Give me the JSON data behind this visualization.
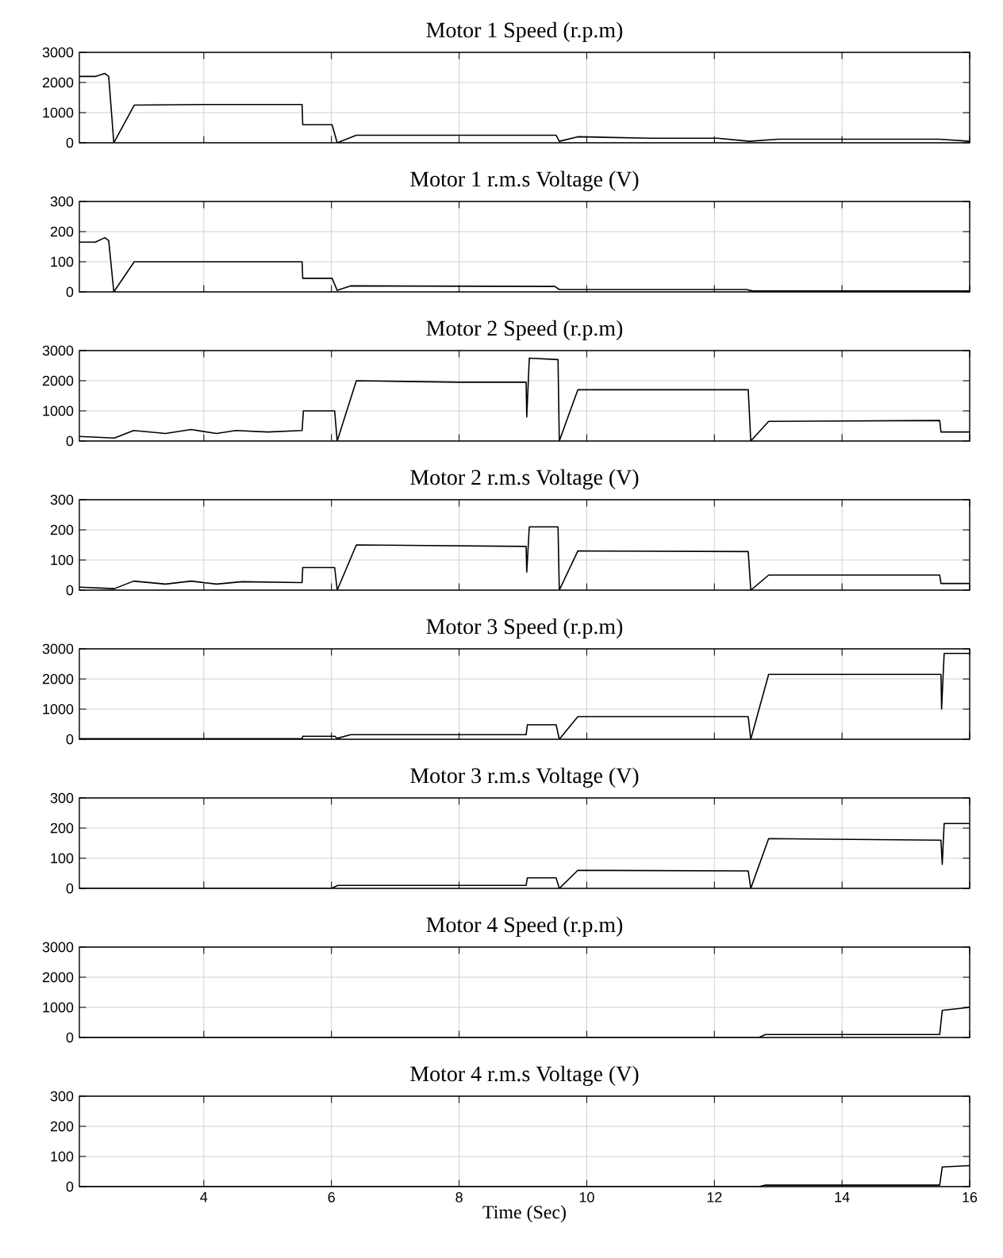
{
  "chart_data": [
    {
      "type": "line",
      "title": "Motor 1 Speed (r.p.m)",
      "color": "#000000",
      "xlim": [
        2.05,
        16
      ],
      "xticks": [
        4,
        6,
        8,
        10,
        12,
        14,
        16
      ],
      "ylim": [
        0,
        3000
      ],
      "yticks": [
        0,
        1000,
        2000,
        3000
      ],
      "grid": true,
      "tick_labels": "y",
      "x": [
        2.05,
        2.3,
        2.45,
        2.51,
        2.59,
        2.91,
        4.0,
        5.0,
        5.54,
        5.55,
        6.01,
        6.09,
        6.39,
        8.0,
        9.52,
        9.57,
        9.86,
        11.0,
        12.05,
        12.55,
        13.0,
        15.53,
        16.0
      ],
      "values": [
        2200,
        2200,
        2300,
        2200,
        0,
        1250,
        1270,
        1270,
        1270,
        600,
        600,
        0,
        250,
        250,
        250,
        50,
        200,
        150,
        150,
        50,
        120,
        120,
        50
      ]
    },
    {
      "type": "line",
      "title": "Motor 1 r.m.s Voltage (V)",
      "color": "#000000",
      "xlim": [
        2.05,
        16
      ],
      "xticks": [
        4,
        6,
        8,
        10,
        12,
        14,
        16
      ],
      "ylim": [
        0,
        300
      ],
      "yticks": [
        0,
        100,
        200,
        300
      ],
      "grid": true,
      "tick_labels": "y",
      "x": [
        2.05,
        2.3,
        2.45,
        2.51,
        2.59,
        2.91,
        4.0,
        5.54,
        5.55,
        6.01,
        6.09,
        6.3,
        9.5,
        9.57,
        12.5,
        12.6,
        16.0
      ],
      "values": [
        165,
        165,
        180,
        170,
        0,
        100,
        100,
        100,
        45,
        45,
        5,
        20,
        18,
        8,
        8,
        3,
        3
      ]
    },
    {
      "type": "line",
      "title": "Motor 2 Speed (r.p.m)",
      "color": "#000000",
      "xlim": [
        2.05,
        16
      ],
      "xticks": [
        4,
        6,
        8,
        10,
        12,
        14,
        16
      ],
      "ylim": [
        0,
        3000
      ],
      "yticks": [
        0,
        1000,
        2000,
        3000
      ],
      "grid": true,
      "tick_labels": "y",
      "x": [
        2.05,
        2.6,
        2.9,
        3.4,
        3.8,
        4.2,
        4.5,
        5.0,
        5.54,
        5.56,
        6.05,
        6.09,
        6.39,
        8.0,
        9.05,
        9.06,
        9.1,
        9.55,
        9.57,
        9.86,
        12.53,
        12.57,
        12.85,
        15.53,
        15.55,
        16.0
      ],
      "values": [
        150,
        100,
        350,
        250,
        380,
        250,
        350,
        300,
        350,
        1000,
        1000,
        0,
        2000,
        1950,
        1950,
        800,
        2750,
        2700,
        0,
        1700,
        1700,
        0,
        650,
        680,
        300,
        300
      ]
    },
    {
      "type": "line",
      "title": "Motor 2 r.m.s Voltage (V)",
      "color": "#000000",
      "xlim": [
        2.05,
        16
      ],
      "xticks": [
        4,
        6,
        8,
        10,
        12,
        14,
        16
      ],
      "ylim": [
        0,
        300
      ],
      "yticks": [
        0,
        100,
        200,
        300
      ],
      "grid": true,
      "tick_labels": "y",
      "x": [
        2.05,
        2.6,
        2.9,
        3.4,
        3.8,
        4.2,
        4.6,
        5.54,
        5.55,
        6.05,
        6.09,
        6.39,
        9.05,
        9.06,
        9.1,
        9.55,
        9.57,
        9.86,
        12.53,
        12.57,
        12.85,
        15.53,
        15.55,
        16.0
      ],
      "values": [
        10,
        5,
        30,
        20,
        30,
        20,
        28,
        25,
        75,
        75,
        0,
        150,
        145,
        60,
        210,
        210,
        0,
        130,
        128,
        0,
        50,
        50,
        22,
        22
      ]
    },
    {
      "type": "line",
      "title": "Motor 3 Speed (r.p.m)",
      "color": "#000000",
      "xlim": [
        2.05,
        16
      ],
      "xticks": [
        4,
        6,
        8,
        10,
        12,
        14,
        16
      ],
      "ylim": [
        0,
        3000
      ],
      "yticks": [
        0,
        1000,
        2000,
        3000
      ],
      "grid": true,
      "tick_labels": "y",
      "x": [
        2.05,
        5.54,
        5.55,
        6.05,
        6.09,
        6.3,
        9.05,
        9.07,
        9.52,
        9.57,
        9.86,
        12.53,
        12.57,
        12.85,
        15.55,
        15.56,
        15.6,
        16.0
      ],
      "values": [
        20,
        20,
        100,
        100,
        30,
        150,
        150,
        480,
        480,
        0,
        750,
        750,
        0,
        2150,
        2150,
        1000,
        2850,
        2850
      ]
    },
    {
      "type": "line",
      "title": "Motor 3 r.m.s Voltage (V)",
      "color": "#000000",
      "xlim": [
        2.05,
        16
      ],
      "xticks": [
        4,
        6,
        8,
        10,
        12,
        14,
        16
      ],
      "ylim": [
        0,
        300
      ],
      "yticks": [
        0,
        100,
        200,
        300
      ],
      "grid": true,
      "tick_labels": "y",
      "x": [
        2.05,
        6.0,
        6.1,
        9.05,
        9.07,
        9.52,
        9.57,
        9.86,
        12.53,
        12.57,
        12.85,
        15.55,
        15.57,
        15.6,
        16.0
      ],
      "values": [
        0,
        0,
        10,
        10,
        35,
        35,
        0,
        60,
        58,
        0,
        165,
        160,
        80,
        215,
        215
      ]
    },
    {
      "type": "line",
      "title": "Motor 4 Speed (r.p.m)",
      "color": "#000000",
      "xlim": [
        2.05,
        16
      ],
      "xticks": [
        4,
        6,
        8,
        10,
        12,
        14,
        16
      ],
      "ylim": [
        0,
        3000
      ],
      "yticks": [
        0,
        1000,
        2000,
        3000
      ],
      "grid": true,
      "tick_labels": "y",
      "x": [
        2.05,
        12.7,
        12.8,
        15.53,
        15.57,
        16.0
      ],
      "values": [
        0,
        0,
        100,
        100,
        900,
        1000
      ]
    },
    {
      "type": "line",
      "title": "Motor 4 r.m.s Voltage (V)",
      "xlabel": "Time (Sec)",
      "color": "#000000",
      "xlim": [
        2.05,
        16
      ],
      "xticks": [
        4,
        6,
        8,
        10,
        12,
        14,
        16
      ],
      "ylim": [
        0,
        300
      ],
      "yticks": [
        0,
        100,
        200,
        300
      ],
      "grid": true,
      "x": [
        2.05,
        12.7,
        12.8,
        15.53,
        15.57,
        16.0
      ],
      "values": [
        0,
        0,
        5,
        5,
        65,
        70
      ]
    }
  ]
}
